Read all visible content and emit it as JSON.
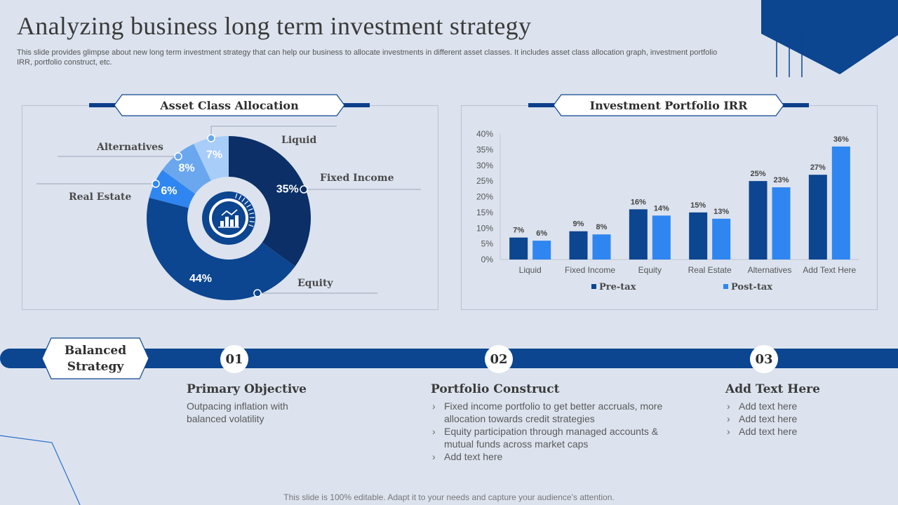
{
  "header": {
    "title": "Analyzing business long term investment strategy",
    "subtitle": "This slide provides glimpse about new long term investment strategy that can help our business to allocate investments in different asset classes. It includes asset class allocation graph, investment portfolio IRR, portfolio construct, etc."
  },
  "left_panel": {
    "title": "Asset Class Allocation"
  },
  "right_panel": {
    "title": "Investment Portfolio IRR"
  },
  "chart_data": [
    {
      "type": "pie",
      "title": "Asset Class Allocation",
      "categories": [
        "Fixed Income",
        "Equity",
        "Real Estate",
        "Alternatives",
        "Liquid"
      ],
      "values": [
        35,
        44,
        6,
        8,
        7
      ],
      "value_labels": [
        "35%",
        "44%",
        "6%",
        "8%",
        "7%"
      ],
      "colors": [
        "#0b2f66",
        "#0c4590",
        "#2f86f0",
        "#6aa7ee",
        "#a8cdf8"
      ],
      "style": "donut"
    },
    {
      "type": "bar",
      "title": "Investment Portfolio IRR",
      "categories": [
        "Liquid",
        "Fixed Income",
        "Equity",
        "Real Estate",
        "Alternatives",
        "Add Text Here"
      ],
      "series": [
        {
          "name": "Pre-tax",
          "values": [
            7,
            9,
            16,
            15,
            25,
            27
          ],
          "labels": [
            "7%",
            "9%",
            "16%",
            "15%",
            "25%",
            "27%"
          ],
          "color": "#0c4590"
        },
        {
          "name": "Post-tax",
          "values": [
            6,
            8,
            14,
            13,
            23,
            36
          ],
          "labels": [
            "6%",
            "8%",
            "14%",
            "13%",
            "23%",
            "36%"
          ],
          "color": "#2f86f0"
        }
      ],
      "ylim": [
        0,
        40
      ],
      "yticks": [
        "0%",
        "5%",
        "10%",
        "15%",
        "20%",
        "25%",
        "30%",
        "35%",
        "40%"
      ],
      "legend": "bottom"
    }
  ],
  "strategy": {
    "label": "Balanced Strategy",
    "steps": [
      {
        "number": "01",
        "title": "Primary Objective",
        "text": "Outpacing inflation with balanced volatility"
      },
      {
        "number": "02",
        "title": "Portfolio Construct",
        "bullets": [
          "Fixed income portfolio to get better accruals, more allocation towards credit strategies",
          "Equity participation through managed accounts & mutual funds across market caps",
          "Add text here"
        ]
      },
      {
        "number": "03",
        "title": "Add Text Here",
        "bullets": [
          "Add text here",
          "Add text here",
          "Add text here"
        ]
      }
    ]
  },
  "footer": "This slide is 100% editable. Adapt it to your needs and capture your audience’s attention.",
  "colors": {
    "dark_blue": "#0c4590",
    "navy": "#0b2f66",
    "bright_blue": "#2f86f0",
    "background": "#dce3ee"
  }
}
